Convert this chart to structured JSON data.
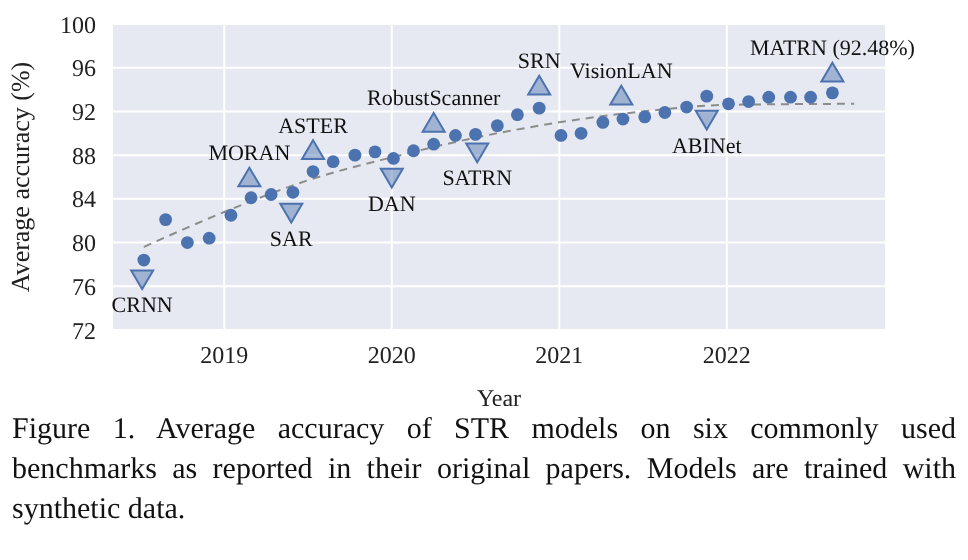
{
  "chart_data": {
    "type": "scatter",
    "xlabel": "Year",
    "ylabel": "Average accuracy (%)",
    "xlim": [
      2018.33,
      2022.95
    ],
    "xticks": [
      2019,
      2020,
      2021,
      2022
    ],
    "ylim": [
      72,
      100
    ],
    "yticks": [
      72,
      76,
      80,
      84,
      88,
      92,
      96,
      100
    ],
    "grid": true,
    "legend": false,
    "series": [
      {
        "marker": "circle",
        "color": "#4c72b0",
        "x": [
          2018.52,
          2018.65,
          2018.78,
          2018.91,
          2019.04,
          2019.16,
          2019.28,
          2019.41,
          2019.53,
          2019.65,
          2019.78,
          2019.9,
          2020.01,
          2020.13,
          2020.25,
          2020.38,
          2020.5,
          2020.63,
          2020.75,
          2020.88,
          2021.01,
          2021.13,
          2021.26,
          2021.38,
          2021.51,
          2021.63,
          2021.76,
          2021.88,
          2022.01,
          2022.13,
          2022.25,
          2022.38,
          2022.5,
          2022.63
        ],
        "values": [
          78.4,
          82.1,
          80.0,
          80.4,
          82.5,
          84.1,
          84.4,
          84.6,
          86.5,
          87.4,
          88.0,
          88.3,
          87.7,
          88.4,
          89.0,
          89.8,
          89.9,
          90.7,
          91.7,
          92.3,
          89.8,
          90.0,
          91.0,
          91.3,
          91.5,
          91.9,
          92.4,
          93.4,
          92.7,
          92.9,
          93.3,
          93.3,
          93.3,
          93.7
        ]
      },
      {
        "marker": "triangle",
        "color": "#4c72b0",
        "x": [
          2019.15,
          2019.53,
          2020.25,
          2020.88,
          2021.37,
          2022.63
        ],
        "values": [
          85.9,
          88.4,
          90.9,
          94.3,
          93.4,
          95.5
        ]
      },
      {
        "marker": "triangle",
        "color": "#4c72b0",
        "x": [
          2018.51,
          2019.4,
          2020.0,
          2020.51,
          2021.88
        ],
        "values": [
          76.7,
          82.8,
          86.0,
          88.3,
          91.3
        ]
      },
      {
        "type": "line",
        "marker": "none",
        "line_style": "dashed",
        "color": "#8c8c8c",
        "x": [
          2018.52,
          2019,
          2019.5,
          2020,
          2020.5,
          2021,
          2021.5,
          2022,
          2022.76
        ],
        "values": [
          79.6,
          82.8,
          85.7,
          87.8,
          89.6,
          91.0,
          92.0,
          92.6,
          92.7
        ]
      }
    ],
    "annotations": [
      {
        "text": "CRNN",
        "x": 2018.51,
        "y": 76.7
      },
      {
        "text": "MORAN",
        "x": 2019.15,
        "y": 85.9
      },
      {
        "text": "SAR",
        "x": 2019.4,
        "y": 82.8
      },
      {
        "text": "ASTER",
        "x": 2019.53,
        "y": 88.4
      },
      {
        "text": "DAN",
        "x": 2020.0,
        "y": 86.0
      },
      {
        "text": "RobustScanner",
        "x": 2020.25,
        "y": 90.9
      },
      {
        "text": "SATRN",
        "x": 2020.51,
        "y": 88.3
      },
      {
        "text": "SRN",
        "x": 2020.88,
        "y": 94.3
      },
      {
        "text": "VisionLAN",
        "x": 2021.37,
        "y": 93.4
      },
      {
        "text": "ABINet",
        "x": 2021.88,
        "y": 91.3
      },
      {
        "text": "MATRN (92.48%)",
        "x": 2022.63,
        "y": 95.5
      },
      "Figure 1. Average accuracy of STR models on six commonly used benchmarks as reported in their original papers. Models are trained with synthetic data."
    ]
  }
}
